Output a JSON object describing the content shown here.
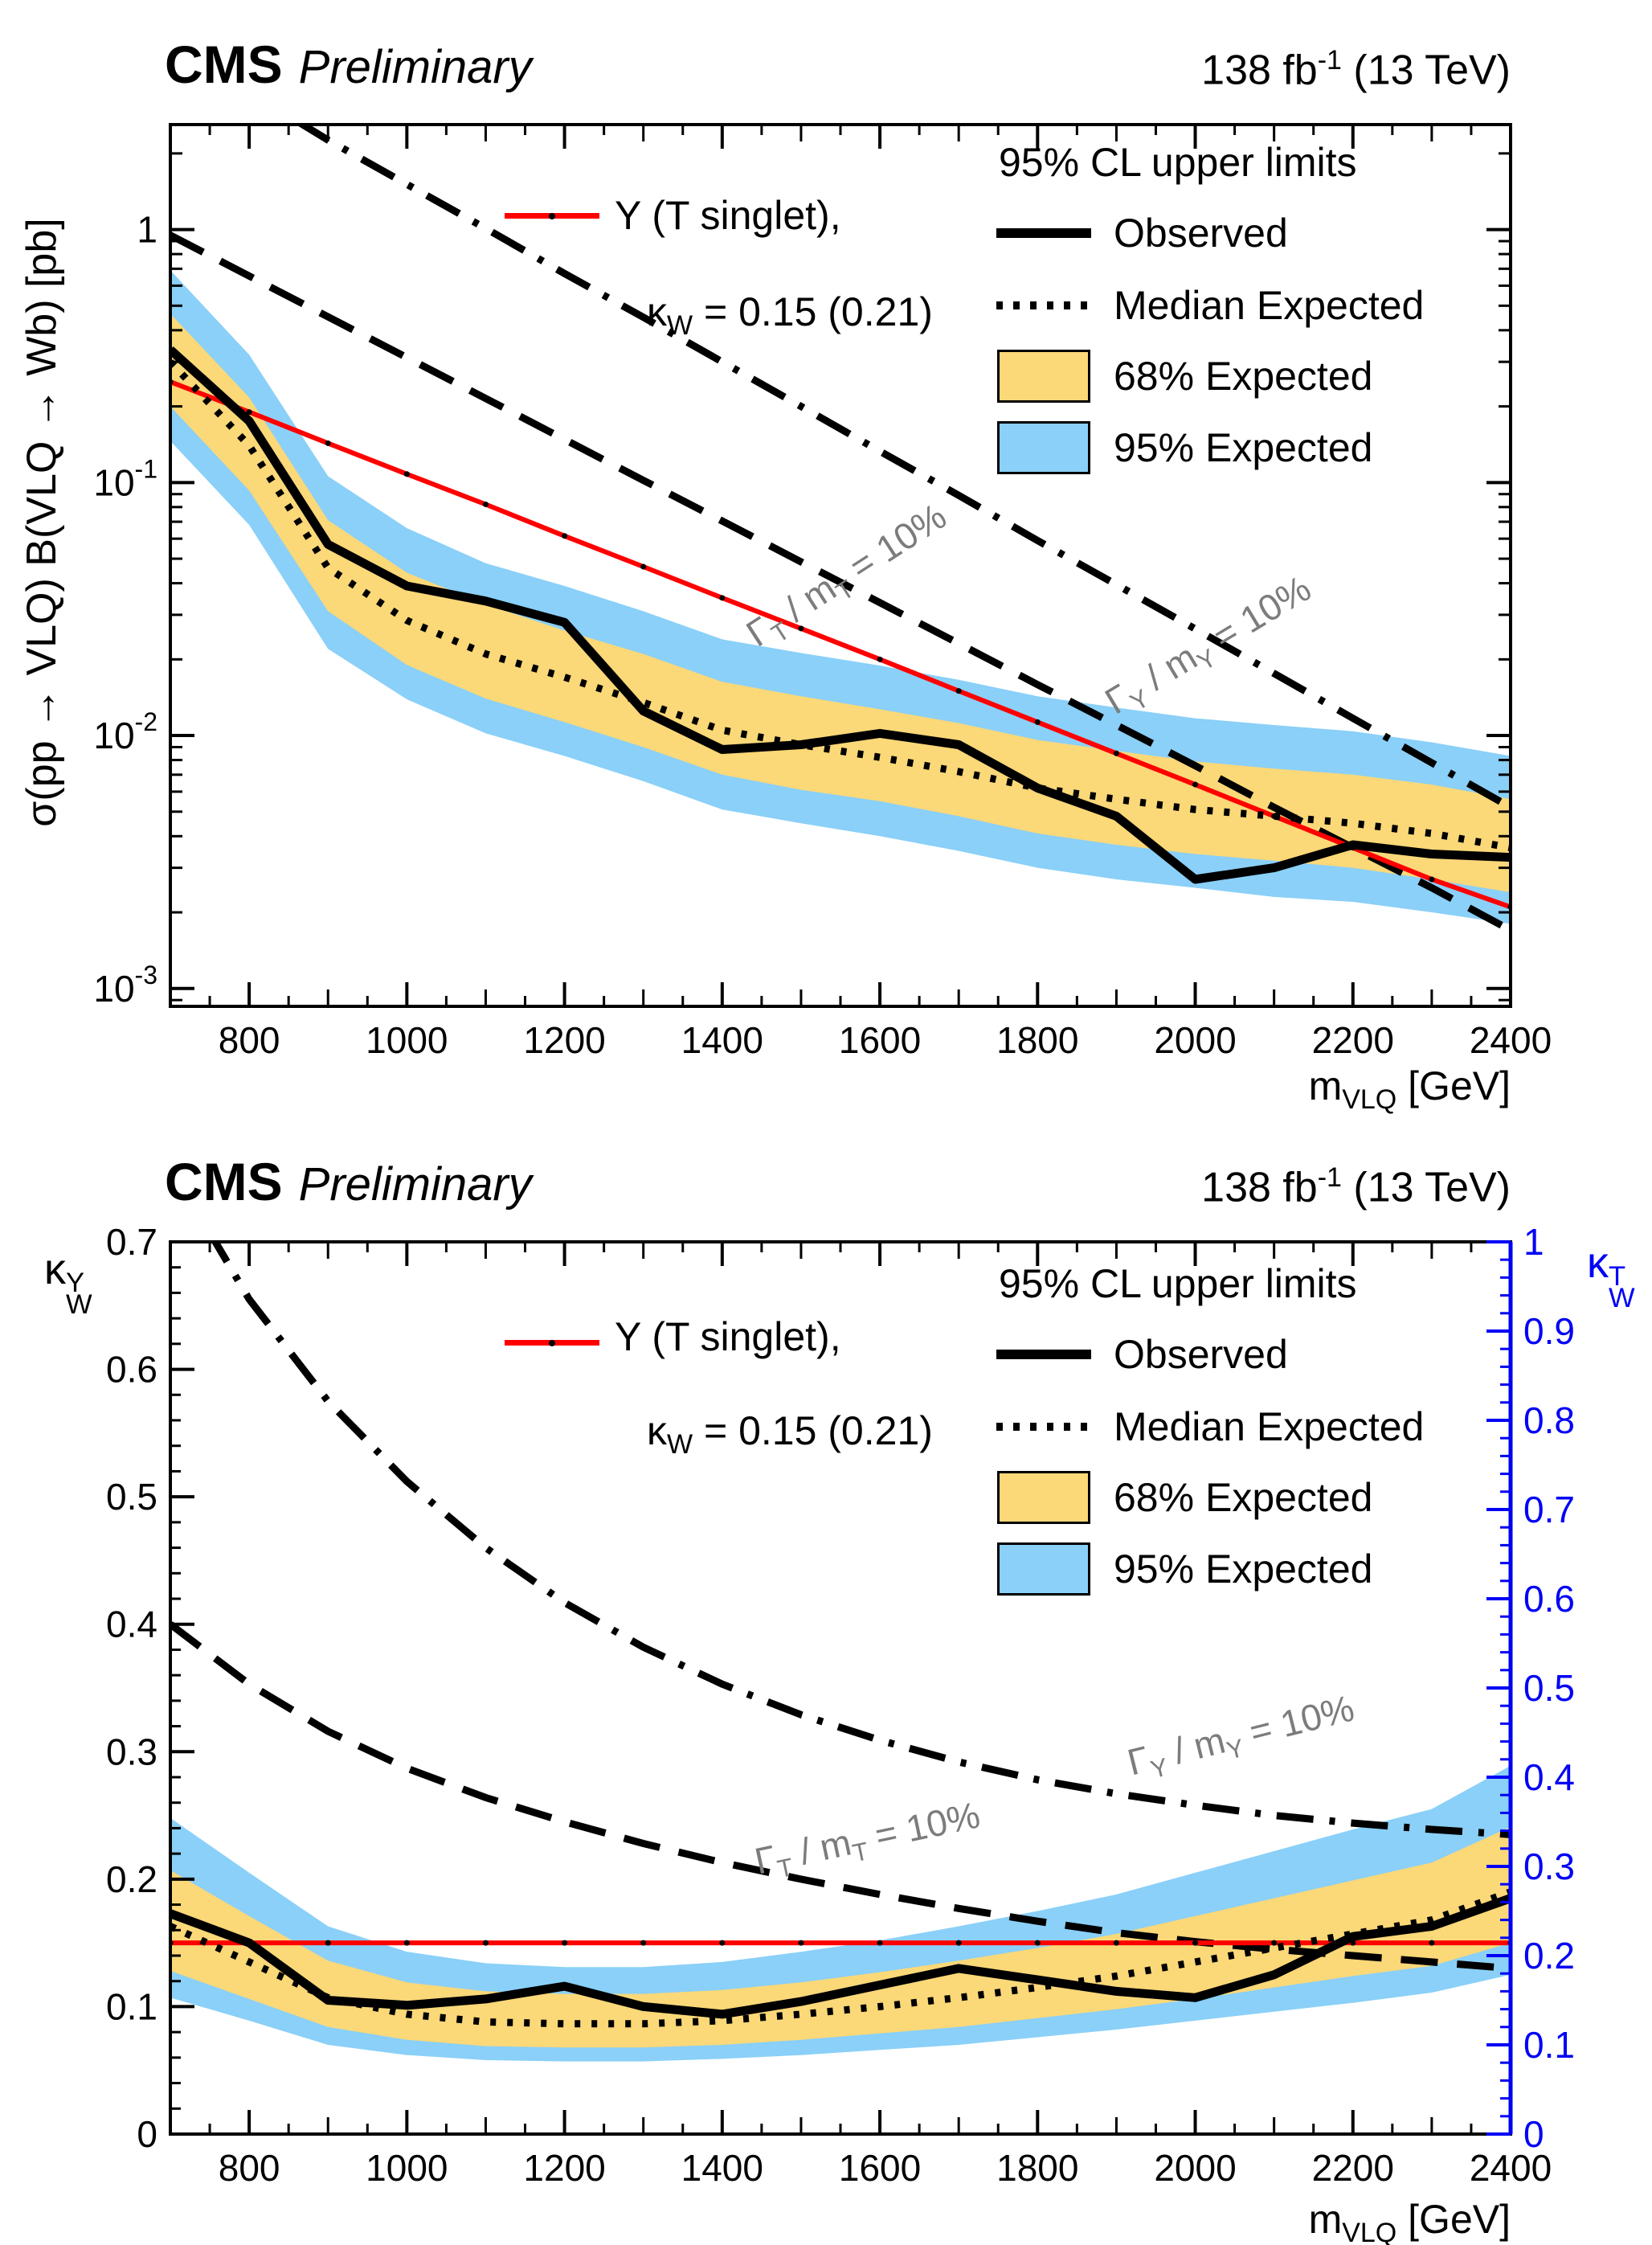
{
  "colors": {
    "band68": "#fbd878",
    "band95": "#8ad0f8",
    "signal": "#ff0000",
    "right_axis": "#0000f5",
    "curve_label": "#7c7c7c"
  },
  "chart_data": [
    {
      "type": "line",
      "header": {
        "experiment": "CMS",
        "status": "Preliminary",
        "lumi_a": "138 fb",
        "lumi_sup": "-1",
        "lumi_b": " (13 TeV)"
      },
      "ylabel": "σ(pp → VLQ) B(VLQ → Wb) [pb]",
      "x_label_parts": {
        "base": "m",
        "sub": "VLQ",
        "rest": " [GeV]"
      },
      "xlim": [
        700,
        2400
      ],
      "ylim": [
        0.00085,
        2.6
      ],
      "yscale": "log",
      "grid": false,
      "legend_position": "upper right",
      "x_ticks": [
        800,
        1000,
        1200,
        1400,
        1600,
        1800,
        2000,
        2200,
        2400
      ],
      "x_tick_labels": [
        "800",
        "1000",
        "1200",
        "1400",
        "1600",
        "1800",
        "2000",
        "2200",
        "2400"
      ],
      "y_ticks": [
        1,
        0.1,
        0.01,
        0.001
      ],
      "y_tick_labels": [
        "1",
        "10^{-1}",
        "10^{-2}",
        "10^{-3}"
      ],
      "legend_title": "95% CL upper limits",
      "legend": [
        {
          "label": "Observed",
          "style": "solid-line"
        },
        {
          "label": "Median Expected",
          "style": "dotted-line"
        },
        {
          "label": "68% Expected",
          "style": "band",
          "color": "#fbd878"
        },
        {
          "label": "95% Expected",
          "style": "band",
          "color": "#8ad0f8"
        }
      ],
      "signal_legend": {
        "line1": "Y (T singlet),",
        "k": "κ",
        "ksub": "W",
        "rest": " = 0.15 (0.21)"
      },
      "curve_labels": [
        {
          "g": "Γ",
          "gsub": "T",
          "mid": " / m",
          "msub": "T",
          "rest": " = 10%"
        },
        {
          "g": "Γ",
          "gsub": "Y",
          "mid": " / m",
          "msub": "Y",
          "rest": " = 10%"
        }
      ],
      "x": [
        700,
        800,
        900,
        1000,
        1100,
        1200,
        1300,
        1400,
        1500,
        1600,
        1700,
        1800,
        1900,
        2000,
        2100,
        2200,
        2300,
        2400
      ],
      "series": [
        {
          "name": "observed",
          "values": [
            0.335,
            0.175,
            0.057,
            0.039,
            0.034,
            0.028,
            0.0125,
            0.0088,
            0.0092,
            0.0102,
            0.0092,
            0.0062,
            0.0048,
            0.0027,
            0.003,
            0.0037,
            0.0034,
            0.0033
          ]
        },
        {
          "name": "median_expected",
          "values": [
            0.3,
            0.14,
            0.046,
            0.0285,
            0.021,
            0.017,
            0.0135,
            0.0105,
            0.0092,
            0.0082,
            0.0072,
            0.0062,
            0.0056,
            0.0051,
            0.0048,
            0.0045,
            0.0041,
            0.0036
          ]
        },
        {
          "name": "band68_up",
          "values": [
            0.465,
            0.217,
            0.071,
            0.044,
            0.033,
            0.026,
            0.021,
            0.0163,
            0.0143,
            0.0127,
            0.0112,
            0.0096,
            0.0087,
            0.0079,
            0.0074,
            0.007,
            0.0064,
            0.0056
          ]
        },
        {
          "name": "band68_down",
          "values": [
            0.2,
            0.093,
            0.031,
            0.019,
            0.014,
            0.0113,
            0.009,
            0.007,
            0.0061,
            0.0055,
            0.0048,
            0.0041,
            0.0037,
            0.0034,
            0.0032,
            0.003,
            0.0027,
            0.0024
          ]
        },
        {
          "name": "band95_up",
          "values": [
            0.69,
            0.32,
            0.106,
            0.066,
            0.048,
            0.039,
            0.031,
            0.024,
            0.0212,
            0.0189,
            0.0166,
            0.0143,
            0.0129,
            0.0117,
            0.011,
            0.0104,
            0.0094,
            0.0083
          ]
        },
        {
          "name": "band95_down",
          "values": [
            0.146,
            0.068,
            0.022,
            0.0139,
            0.0102,
            0.0083,
            0.0066,
            0.0051,
            0.0045,
            0.004,
            0.0035,
            0.003,
            0.0027,
            0.0025,
            0.0023,
            0.0022,
            0.002,
            0.0018
          ]
        },
        {
          "name": "signal",
          "values": [
            0.25,
            0.19,
            0.143,
            0.108,
            0.082,
            0.0615,
            0.0465,
            0.035,
            0.0265,
            0.02,
            0.015,
            0.0113,
            0.0085,
            0.0064,
            0.0048,
            0.0036,
            0.0027,
            0.0021
          ]
        },
        {
          "name": "gamma_t_10pct",
          "values": [
            0.95,
            0.655,
            0.452,
            0.312,
            0.215,
            0.148,
            0.102,
            0.0705,
            0.0486,
            0.0335,
            0.0231,
            0.0159,
            0.011,
            0.0076,
            0.0052,
            0.0036,
            0.0025,
            0.0017
          ]
        },
        {
          "name": "gamma_y_10pct",
          "values": [
            5.5,
            3.5,
            2.26,
            1.51,
            1.01,
            0.67,
            0.45,
            0.3,
            0.2,
            0.133,
            0.089,
            0.059,
            0.0395,
            0.0264,
            0.0176,
            0.0117,
            0.0078,
            0.0052
          ]
        }
      ]
    },
    {
      "type": "line",
      "header": {
        "experiment": "CMS",
        "status": "Preliminary",
        "lumi_a": "138 fb",
        "lumi_sup": "-1",
        "lumi_b": " (13 TeV)"
      },
      "ylabel_parts": {
        "k": "κ",
        "sup": "Y",
        "sub": "W"
      },
      "x_label_parts": {
        "base": "m",
        "sub": "VLQ",
        "rest": " [GeV]"
      },
      "xlim": [
        700,
        2400
      ],
      "ylim": [
        0,
        0.7
      ],
      "yscale": "linear",
      "grid": false,
      "legend_position": "upper right",
      "x_ticks": [
        800,
        1000,
        1200,
        1400,
        1600,
        1800,
        2000,
        2200,
        2400
      ],
      "x_tick_labels": [
        "800",
        "1000",
        "1200",
        "1400",
        "1600",
        "1800",
        "2000",
        "2200",
        "2400"
      ],
      "y_ticks": [
        0,
        0.1,
        0.2,
        0.3,
        0.4,
        0.5,
        0.6,
        0.7
      ],
      "y_tick_labels": [
        "0",
        "0.1",
        "0.2",
        "0.3",
        "0.4",
        "0.5",
        "0.6",
        "0.7"
      ],
      "right_axis": {
        "label_parts": {
          "k": "κ",
          "sup": "T",
          "sub": "W"
        },
        "ylim": [
          0,
          1
        ],
        "ticks": [
          0,
          0.1,
          0.2,
          0.3,
          0.4,
          0.5,
          0.6,
          0.7,
          0.8,
          0.9,
          1
        ],
        "tick_labels": [
          "0",
          "0.1",
          "0.2",
          "0.3",
          "0.4",
          "0.5",
          "0.6",
          "0.7",
          "0.8",
          "0.9",
          "1"
        ],
        "color": "#0000f5"
      },
      "legend_title": "95% CL upper limits",
      "legend": [
        {
          "label": "Observed",
          "style": "solid-line"
        },
        {
          "label": "Median Expected",
          "style": "dotted-line"
        },
        {
          "label": "68% Expected",
          "style": "band",
          "color": "#fbd878"
        },
        {
          "label": "95% Expected",
          "style": "band",
          "color": "#8ad0f8"
        }
      ],
      "signal_legend": {
        "line1": "Y (T singlet),",
        "k": "κ",
        "ksub": "W",
        "rest": " = 0.15 (0.21)"
      },
      "curve_labels": [
        {
          "g": "Γ",
          "gsub": "T",
          "mid": " / m",
          "msub": "T",
          "rest": " = 10%"
        },
        {
          "g": "Γ",
          "gsub": "Y",
          "mid": " / m",
          "msub": "Y",
          "rest": " = 10%"
        }
      ],
      "x": [
        700,
        800,
        900,
        1000,
        1100,
        1200,
        1300,
        1400,
        1500,
        1600,
        1700,
        1800,
        1900,
        2000,
        2100,
        2200,
        2300,
        2400
      ],
      "series": [
        {
          "name": "observed",
          "values": [
            0.173,
            0.15,
            0.105,
            0.101,
            0.106,
            0.116,
            0.1,
            0.094,
            0.104,
            0.117,
            0.13,
            0.121,
            0.112,
            0.107,
            0.125,
            0.155,
            0.163,
            0.185
          ]
        },
        {
          "name": "median_expected",
          "values": [
            0.163,
            0.135,
            0.107,
            0.094,
            0.088,
            0.0865,
            0.0865,
            0.089,
            0.094,
            0.1,
            0.107,
            0.115,
            0.124,
            0.135,
            0.146,
            0.157,
            0.168,
            0.19
          ]
        },
        {
          "name": "band68_up",
          "values": [
            0.207,
            0.171,
            0.136,
            0.119,
            0.112,
            0.11,
            0.11,
            0.113,
            0.119,
            0.127,
            0.136,
            0.146,
            0.157,
            0.171,
            0.185,
            0.199,
            0.213,
            0.241
          ]
        },
        {
          "name": "band68_down",
          "values": [
            0.128,
            0.106,
            0.084,
            0.074,
            0.069,
            0.068,
            0.068,
            0.07,
            0.074,
            0.079,
            0.084,
            0.091,
            0.098,
            0.106,
            0.115,
            0.124,
            0.132,
            0.15
          ]
        },
        {
          "name": "band95_up",
          "values": [
            0.248,
            0.205,
            0.163,
            0.143,
            0.134,
            0.131,
            0.131,
            0.135,
            0.143,
            0.152,
            0.163,
            0.175,
            0.188,
            0.205,
            0.222,
            0.239,
            0.255,
            0.289
          ]
        },
        {
          "name": "band95_down",
          "values": [
            0.107,
            0.089,
            0.07,
            0.062,
            0.058,
            0.057,
            0.057,
            0.059,
            0.062,
            0.066,
            0.07,
            0.076,
            0.082,
            0.089,
            0.096,
            0.103,
            0.111,
            0.125
          ]
        },
        {
          "name": "signal",
          "values": [
            0.15,
            0.15,
            0.15,
            0.15,
            0.15,
            0.15,
            0.15,
            0.15,
            0.15,
            0.15,
            0.15,
            0.15,
            0.15,
            0.15,
            0.15,
            0.15,
            0.15,
            0.15
          ]
        },
        {
          "name": "gamma_t_10pct",
          "values": [
            0.4,
            0.353,
            0.316,
            0.287,
            0.264,
            0.245,
            0.228,
            0.213,
            0.2,
            0.188,
            0.177,
            0.167,
            0.158,
            0.151,
            0.145,
            0.14,
            0.135,
            0.13
          ]
        },
        {
          "name": "gamma_y_10pct",
          "values": [
            0.76,
            0.655,
            0.575,
            0.512,
            0.46,
            0.417,
            0.382,
            0.353,
            0.329,
            0.309,
            0.292,
            0.278,
            0.267,
            0.258,
            0.25,
            0.244,
            0.239,
            0.235
          ]
        }
      ]
    }
  ]
}
